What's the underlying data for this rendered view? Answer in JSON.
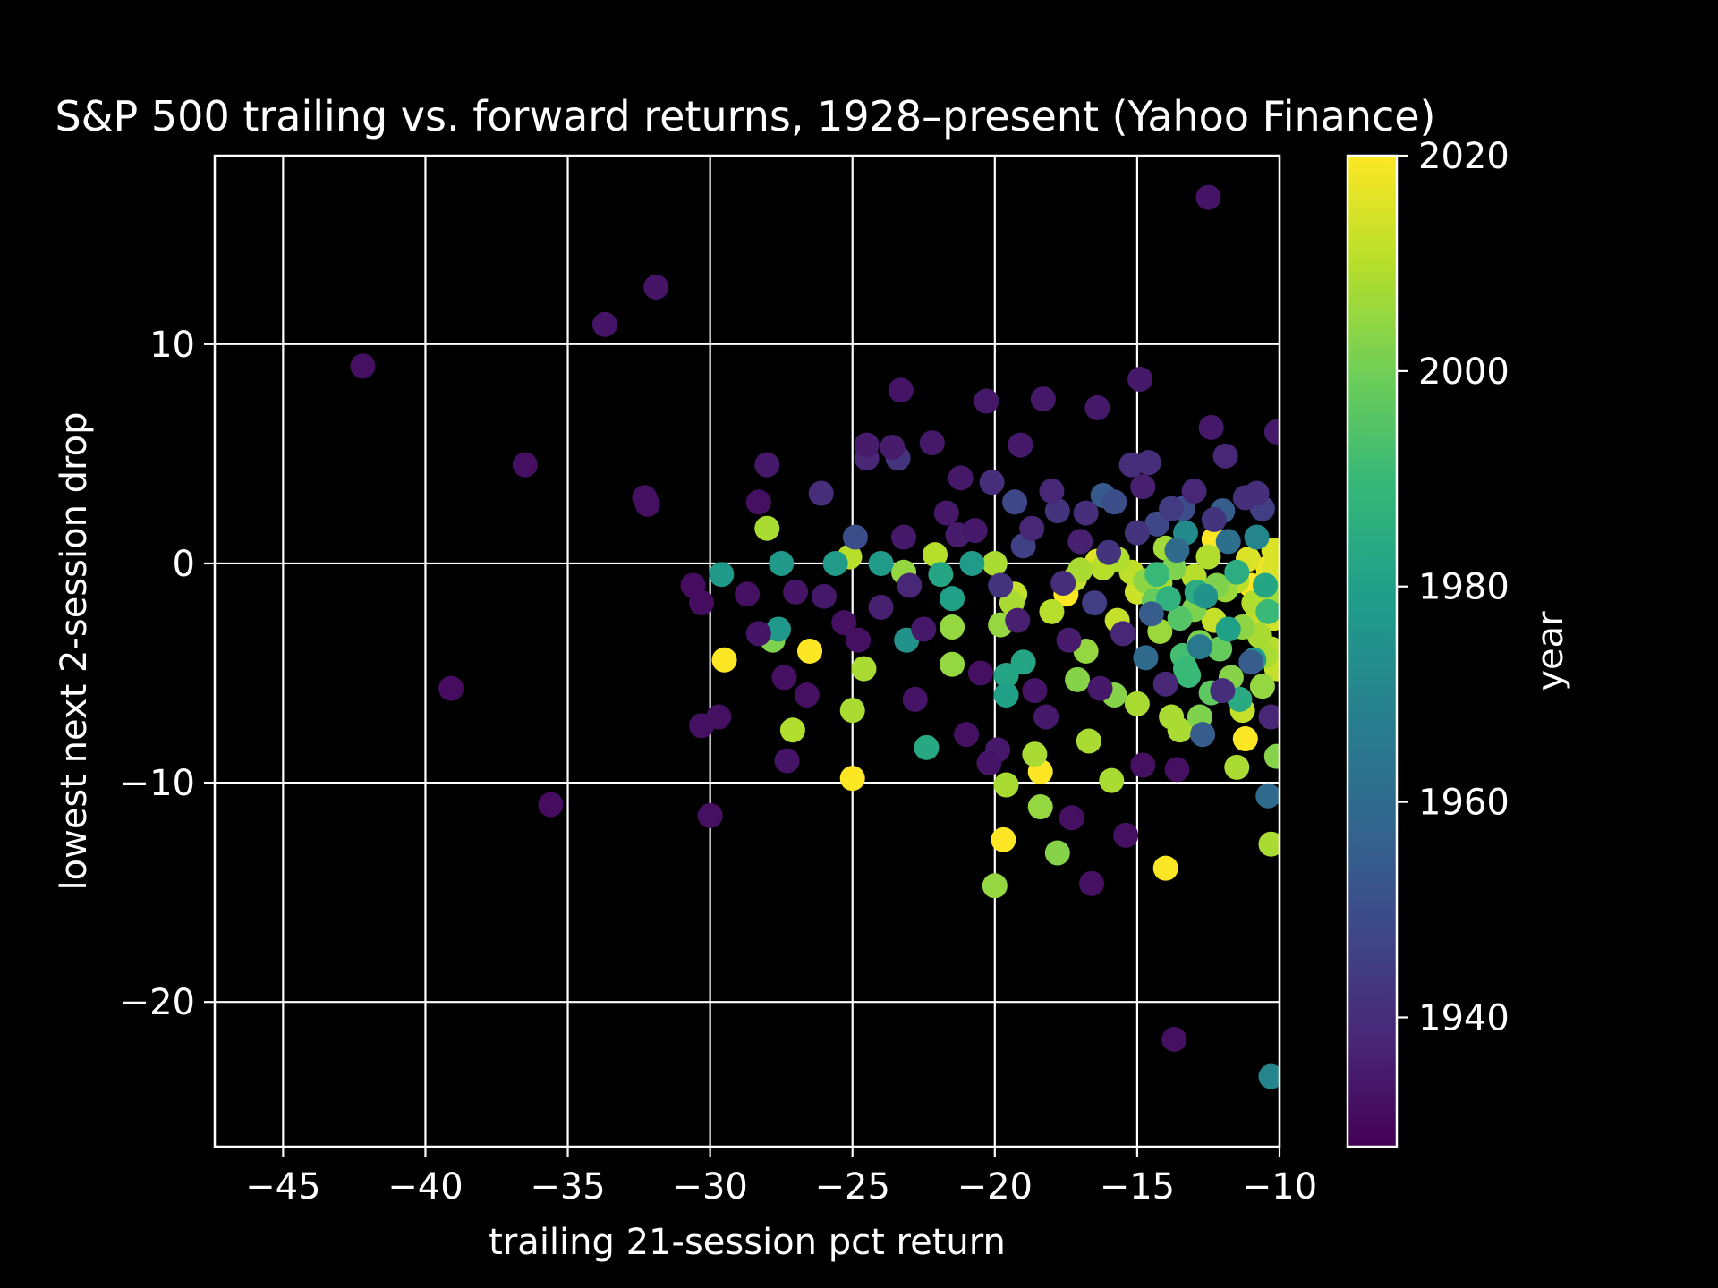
{
  "chart_data": {
    "type": "scatter",
    "title": "S&P 500 trailing vs. forward returns, 1928–present (Yahoo Finance)",
    "xlabel": "trailing 21-session pct return",
    "ylabel": "lowest next 2-session drop",
    "xlim": [
      -47.4,
      -10
    ],
    "ylim": [
      -26.6,
      18.6
    ],
    "xticks": [
      -45,
      -40,
      -35,
      -30,
      -25,
      -20,
      -15,
      -10
    ],
    "xtick_labels": [
      "−45",
      "−40",
      "−35",
      "−30",
      "−25",
      "−20",
      "−15",
      "−10"
    ],
    "yticks": [
      -20,
      -10,
      0,
      10
    ],
    "ytick_labels": [
      "−20",
      "−10",
      "0",
      "10"
    ],
    "grid": true,
    "colorbar": {
      "label": "year",
      "colormap": "viridis",
      "range": [
        1928,
        2020
      ],
      "ticks": [
        1940,
        1960,
        1980,
        2000,
        2020
      ],
      "tick_labels": [
        "1940",
        "1960",
        "1980",
        "2000",
        "2020"
      ]
    },
    "colors": {
      "background": "#000000",
      "foreground": "#ffffff",
      "viridis": [
        "#440154",
        "#482878",
        "#3e4989",
        "#31688e",
        "#26828e",
        "#1f9e89",
        "#35b779",
        "#6ece58",
        "#b5de2b",
        "#fde725"
      ]
    },
    "points": [
      {
        "x": -42.2,
        "y": 9.0,
        "year": 1932
      },
      {
        "x": -36.5,
        "y": 4.5,
        "year": 1932
      },
      {
        "x": -33.7,
        "y": 10.9,
        "year": 1933
      },
      {
        "x": -31.9,
        "y": 12.6,
        "year": 1933
      },
      {
        "x": -32.3,
        "y": 3.0,
        "year": 1932
      },
      {
        "x": -32.2,
        "y": 2.7,
        "year": 1932
      },
      {
        "x": -39.1,
        "y": -5.7,
        "year": 1931
      },
      {
        "x": -35.6,
        "y": -11.0,
        "year": 1931
      },
      {
        "x": -30.0,
        "y": -11.5,
        "year": 1932
      },
      {
        "x": -30.6,
        "y": -1.0,
        "year": 1931
      },
      {
        "x": -30.3,
        "y": -1.8,
        "year": 1931
      },
      {
        "x": -30.3,
        "y": -7.4,
        "year": 1932
      },
      {
        "x": -29.7,
        "y": -7.0,
        "year": 1932
      },
      {
        "x": -29.6,
        "y": -0.5,
        "year": 1977
      },
      {
        "x": -29.5,
        "y": -4.4,
        "year": 2020
      },
      {
        "x": -28.7,
        "y": -1.4,
        "year": 1932
      },
      {
        "x": -28.3,
        "y": -3.2,
        "year": 1933
      },
      {
        "x": -28.3,
        "y": 2.8,
        "year": 1932
      },
      {
        "x": -28.0,
        "y": 1.6,
        "year": 2008
      },
      {
        "x": -28.0,
        "y": 4.5,
        "year": 1934
      },
      {
        "x": -27.8,
        "y": -3.5,
        "year": 2002
      },
      {
        "x": -27.6,
        "y": -3.0,
        "year": 1977
      },
      {
        "x": -27.5,
        "y": 0.0,
        "year": 1977
      },
      {
        "x": -27.4,
        "y": -5.2,
        "year": 1932
      },
      {
        "x": -27.3,
        "y": -9.0,
        "year": 1933
      },
      {
        "x": -27.1,
        "y": -7.6,
        "year": 2009
      },
      {
        "x": -27.0,
        "y": -1.3,
        "year": 1933
      },
      {
        "x": -26.6,
        "y": -6.0,
        "year": 1932
      },
      {
        "x": -26.5,
        "y": -4.0,
        "year": 2020
      },
      {
        "x": -26.1,
        "y": 3.2,
        "year": 1940
      },
      {
        "x": -25.6,
        "y": 0.0,
        "year": 1978
      },
      {
        "x": -25.3,
        "y": -2.7,
        "year": 1932
      },
      {
        "x": -25.1,
        "y": 0.3,
        "year": 2010
      },
      {
        "x": -25.0,
        "y": -9.8,
        "year": 2020
      },
      {
        "x": -25.0,
        "y": -6.7,
        "year": 2008
      },
      {
        "x": -24.9,
        "y": 1.2,
        "year": 1950
      },
      {
        "x": -24.8,
        "y": -3.5,
        "year": 1932
      },
      {
        "x": -24.6,
        "y": -4.8,
        "year": 2008
      },
      {
        "x": -24.5,
        "y": 5.4,
        "year": 1935
      },
      {
        "x": -24.5,
        "y": 4.8,
        "year": 1938
      },
      {
        "x": -24.0,
        "y": 0.0,
        "year": 1978
      },
      {
        "x": -23.6,
        "y": 5.3,
        "year": 1935
      },
      {
        "x": -23.4,
        "y": 4.8,
        "year": 1942
      },
      {
        "x": -23.3,
        "y": 7.9,
        "year": 1933
      },
      {
        "x": -23.2,
        "y": -0.4,
        "year": 2005
      },
      {
        "x": -23.1,
        "y": -3.5,
        "year": 1975
      },
      {
        "x": -23.2,
        "y": 1.2,
        "year": 1934
      },
      {
        "x": -22.2,
        "y": 5.5,
        "year": 1934
      },
      {
        "x": -22.1,
        "y": 0.4,
        "year": 2010
      },
      {
        "x": -21.9,
        "y": -0.5,
        "year": 1982
      },
      {
        "x": -22.4,
        "y": -8.4,
        "year": 1983
      },
      {
        "x": -21.5,
        "y": -1.6,
        "year": 1980
      },
      {
        "x": -21.5,
        "y": -2.9,
        "year": 2005
      },
      {
        "x": -21.5,
        "y": -4.6,
        "year": 2005
      },
      {
        "x": -21.2,
        "y": 3.9,
        "year": 1934
      },
      {
        "x": -21.0,
        "y": -7.8,
        "year": 1932
      },
      {
        "x": -20.8,
        "y": 0.0,
        "year": 1978
      },
      {
        "x": -20.3,
        "y": 7.4,
        "year": 1934
      },
      {
        "x": -20.1,
        "y": 3.7,
        "year": 1940
      },
      {
        "x": -20.0,
        "y": 0.0,
        "year": 2008
      },
      {
        "x": -20.0,
        "y": -14.7,
        "year": 2005
      },
      {
        "x": -19.8,
        "y": -2.8,
        "year": 2005
      },
      {
        "x": -19.7,
        "y": -12.6,
        "year": 2020
      },
      {
        "x": -19.6,
        "y": -10.1,
        "year": 2008
      },
      {
        "x": -19.6,
        "y": -6.0,
        "year": 1980
      },
      {
        "x": -19.6,
        "y": -5.1,
        "year": 1982
      },
      {
        "x": -19.4,
        "y": -1.8,
        "year": 2008
      },
      {
        "x": -19.3,
        "y": 2.8,
        "year": 1948
      },
      {
        "x": -19.3,
        "y": -1.4,
        "year": 2012
      },
      {
        "x": -19.1,
        "y": 5.4,
        "year": 1934
      },
      {
        "x": -19.0,
        "y": -4.5,
        "year": 1982
      },
      {
        "x": -18.6,
        "y": -8.7,
        "year": 2008
      },
      {
        "x": -18.4,
        "y": -9.5,
        "year": 2020
      },
      {
        "x": -18.4,
        "y": -11.1,
        "year": 2005
      },
      {
        "x": -18.3,
        "y": 7.5,
        "year": 1934
      },
      {
        "x": -18.0,
        "y": -2.2,
        "year": 2010
      },
      {
        "x": -17.8,
        "y": -13.2,
        "year": 2003
      },
      {
        "x": -17.5,
        "y": -1.4,
        "year": 2020
      },
      {
        "x": -17.3,
        "y": -11.6,
        "year": 1932
      },
      {
        "x": -17.2,
        "y": -0.7,
        "year": 2012
      },
      {
        "x": -17.1,
        "y": -5.3,
        "year": 2003
      },
      {
        "x": -16.8,
        "y": -4.0,
        "year": 2005
      },
      {
        "x": -16.7,
        "y": -8.1,
        "year": 2008
      },
      {
        "x": -16.6,
        "y": -14.6,
        "year": 1932
      },
      {
        "x": -16.4,
        "y": 7.1,
        "year": 1934
      },
      {
        "x": -16.2,
        "y": 3.1,
        "year": 1954
      },
      {
        "x": -15.9,
        "y": -9.9,
        "year": 2008
      },
      {
        "x": -15.8,
        "y": -6.0,
        "year": 2003
      },
      {
        "x": -15.7,
        "y": -2.6,
        "year": 2012
      },
      {
        "x": -15.4,
        "y": -12.4,
        "year": 1932
      },
      {
        "x": -15.0,
        "y": -6.4,
        "year": 2008
      },
      {
        "x": -14.9,
        "y": 8.4,
        "year": 1934
      },
      {
        "x": -14.8,
        "y": -9.2,
        "year": 1932
      },
      {
        "x": -14.7,
        "y": -4.3,
        "year": 1960
      },
      {
        "x": -14.6,
        "y": 4.6,
        "year": 1940
      },
      {
        "x": -14.2,
        "y": -0.9,
        "year": 2008
      },
      {
        "x": -14.0,
        "y": -13.9,
        "year": 2020
      },
      {
        "x": -13.8,
        "y": -7.0,
        "year": 2008
      },
      {
        "x": -13.7,
        "y": -21.7,
        "year": 1932
      },
      {
        "x": -13.6,
        "y": -9.4,
        "year": 1932
      },
      {
        "x": -13.5,
        "y": -7.6,
        "year": 2008
      },
      {
        "x": -13.4,
        "y": 2.5,
        "year": 1950
      },
      {
        "x": -13.2,
        "y": -5.1,
        "year": 1990
      },
      {
        "x": -13.0,
        "y": -2.1,
        "year": 2002
      },
      {
        "x": -12.8,
        "y": -7.0,
        "year": 2002
      },
      {
        "x": -12.7,
        "y": -7.8,
        "year": 1955
      },
      {
        "x": -12.5,
        "y": 16.7,
        "year": 1933
      },
      {
        "x": -12.4,
        "y": 6.2,
        "year": 1934
      },
      {
        "x": -12.3,
        "y": 1.1,
        "year": 2020
      },
      {
        "x": -12.2,
        "y": -1.0,
        "year": 2002
      },
      {
        "x": -12.0,
        "y": 2.4,
        "year": 1955
      },
      {
        "x": -11.9,
        "y": 4.9,
        "year": 1938
      },
      {
        "x": -11.5,
        "y": -9.3,
        "year": 2008
      },
      {
        "x": -11.3,
        "y": -6.7,
        "year": 2012
      },
      {
        "x": -11.2,
        "y": -8.0,
        "year": 2020
      },
      {
        "x": -11.0,
        "y": -2.8,
        "year": 2012
      },
      {
        "x": -10.8,
        "y": 3.2,
        "year": 1940
      },
      {
        "x": -10.5,
        "y": -4.2,
        "year": 2008
      },
      {
        "x": -10.4,
        "y": -10.6,
        "year": 1960
      },
      {
        "x": -10.3,
        "y": -12.8,
        "year": 2008
      },
      {
        "x": -10.3,
        "y": -23.4,
        "year": 1970
      },
      {
        "x": -10.2,
        "y": -0.2,
        "year": 2015
      },
      {
        "x": -10.1,
        "y": 6.0,
        "year": 1934
      },
      {
        "x": -26.0,
        "y": -1.5,
        "year": 1934
      },
      {
        "x": -24.0,
        "y": -2.0,
        "year": 1936
      },
      {
        "x": -23.0,
        "y": -1.0,
        "year": 1938
      },
      {
        "x": -22.5,
        "y": -3.0,
        "year": 1934
      },
      {
        "x": -22.8,
        "y": -6.2,
        "year": 1933
      },
      {
        "x": -21.7,
        "y": 2.3,
        "year": 1934
      },
      {
        "x": -21.3,
        "y": 1.3,
        "year": 1935
      },
      {
        "x": -20.7,
        "y": 1.5,
        "year": 1934
      },
      {
        "x": -20.5,
        "y": -5.0,
        "year": 1932
      },
      {
        "x": -20.2,
        "y": -9.1,
        "year": 1933
      },
      {
        "x": -19.9,
        "y": -8.5,
        "year": 1934
      },
      {
        "x": -19.8,
        "y": -1.0,
        "year": 1942
      },
      {
        "x": -19.2,
        "y": -2.6,
        "year": 1936
      },
      {
        "x": -19.0,
        "y": 0.8,
        "year": 1946
      },
      {
        "x": -18.7,
        "y": 1.6,
        "year": 1938
      },
      {
        "x": -18.6,
        "y": -5.8,
        "year": 1933
      },
      {
        "x": -18.2,
        "y": -7.0,
        "year": 1934
      },
      {
        "x": -18.0,
        "y": 3.3,
        "year": 1938
      },
      {
        "x": -17.8,
        "y": 2.4,
        "year": 1942
      },
      {
        "x": -17.6,
        "y": -0.9,
        "year": 1940
      },
      {
        "x": -17.4,
        "y": -3.5,
        "year": 1935
      },
      {
        "x": -17.0,
        "y": 1.0,
        "year": 1936
      },
      {
        "x": -16.8,
        "y": 2.3,
        "year": 1940
      },
      {
        "x": -16.5,
        "y": -1.8,
        "year": 1945
      },
      {
        "x": -16.3,
        "y": -5.7,
        "year": 1934
      },
      {
        "x": -16.0,
        "y": 0.5,
        "year": 1942
      },
      {
        "x": -15.8,
        "y": 2.8,
        "year": 1950
      },
      {
        "x": -15.5,
        "y": -3.2,
        "year": 1938
      },
      {
        "x": -15.2,
        "y": 4.5,
        "year": 1940
      },
      {
        "x": -15.0,
        "y": 1.4,
        "year": 1942
      },
      {
        "x": -14.8,
        "y": 3.5,
        "year": 1936
      },
      {
        "x": -14.5,
        "y": -2.3,
        "year": 1955
      },
      {
        "x": -14.3,
        "y": 1.8,
        "year": 1948
      },
      {
        "x": -14.0,
        "y": -5.5,
        "year": 1938
      },
      {
        "x": -13.8,
        "y": 2.5,
        "year": 1944
      },
      {
        "x": -13.6,
        "y": 0.6,
        "year": 1960
      },
      {
        "x": -13.3,
        "y": 1.4,
        "year": 1972
      },
      {
        "x": -13.0,
        "y": 3.3,
        "year": 1938
      },
      {
        "x": -12.8,
        "y": -3.8,
        "year": 1965
      },
      {
        "x": -12.6,
        "y": -1.5,
        "year": 1975
      },
      {
        "x": -12.3,
        "y": 2.0,
        "year": 1942
      },
      {
        "x": -12.0,
        "y": -5.8,
        "year": 1940
      },
      {
        "x": -11.8,
        "y": 1.0,
        "year": 1962
      },
      {
        "x": -11.5,
        "y": -0.4,
        "year": 1985
      },
      {
        "x": -11.2,
        "y": 3.0,
        "year": 1940
      },
      {
        "x": -11.0,
        "y": -4.5,
        "year": 1955
      },
      {
        "x": -10.8,
        "y": 1.2,
        "year": 1970
      },
      {
        "x": -10.6,
        "y": 2.5,
        "year": 1945
      },
      {
        "x": -10.4,
        "y": -2.2,
        "year": 1990
      },
      {
        "x": -10.3,
        "y": -7.0,
        "year": 1938
      },
      {
        "x": -10.2,
        "y": 0.6,
        "year": 2015
      },
      {
        "x": -17.0,
        "y": -0.3,
        "year": 2008
      },
      {
        "x": -16.2,
        "y": -0.2,
        "year": 2010
      },
      {
        "x": -15.7,
        "y": 0.2,
        "year": 2009
      },
      {
        "x": -15.2,
        "y": -0.4,
        "year": 2011
      },
      {
        "x": -15.0,
        "y": -1.3,
        "year": 2013
      },
      {
        "x": -14.7,
        "y": -0.8,
        "year": 2004
      },
      {
        "x": -14.4,
        "y": -1.7,
        "year": 1998
      },
      {
        "x": -14.2,
        "y": -3.1,
        "year": 2006
      },
      {
        "x": -14.0,
        "y": 0.7,
        "year": 2007
      },
      {
        "x": -13.7,
        "y": -0.2,
        "year": 2002
      },
      {
        "x": -13.5,
        "y": -2.5,
        "year": 1995
      },
      {
        "x": -13.3,
        "y": -4.8,
        "year": 1990
      },
      {
        "x": -13.0,
        "y": -0.6,
        "year": 2010
      },
      {
        "x": -12.8,
        "y": -3.6,
        "year": 2001
      },
      {
        "x": -12.5,
        "y": 0.3,
        "year": 2009
      },
      {
        "x": -12.3,
        "y": -2.6,
        "year": 2012
      },
      {
        "x": -12.1,
        "y": -3.9,
        "year": 1998
      },
      {
        "x": -11.9,
        "y": -1.2,
        "year": 2006
      },
      {
        "x": -11.7,
        "y": -5.2,
        "year": 2003
      },
      {
        "x": -11.5,
        "y": -0.8,
        "year": 2011
      },
      {
        "x": -11.3,
        "y": -2.9,
        "year": 2004
      },
      {
        "x": -11.1,
        "y": 0.2,
        "year": 2015
      },
      {
        "x": -10.9,
        "y": -1.8,
        "year": 2009
      },
      {
        "x": -10.7,
        "y": -3.3,
        "year": 2008
      },
      {
        "x": -10.6,
        "y": -5.6,
        "year": 2005
      },
      {
        "x": -10.4,
        "y": -0.6,
        "year": 2017
      },
      {
        "x": -10.3,
        "y": -3.9,
        "year": 2010
      },
      {
        "x": -10.2,
        "y": -1.4,
        "year": 2007
      },
      {
        "x": -10.1,
        "y": -8.8,
        "year": 2003
      },
      {
        "x": -10.1,
        "y": -4.8,
        "year": 2012
      },
      {
        "x": -14.3,
        "y": -0.5,
        "year": 1990
      },
      {
        "x": -13.9,
        "y": -1.6,
        "year": 1987
      },
      {
        "x": -13.4,
        "y": -4.2,
        "year": 1992
      },
      {
        "x": -12.9,
        "y": -1.3,
        "year": 1985
      },
      {
        "x": -12.4,
        "y": -5.9,
        "year": 1997
      },
      {
        "x": -11.8,
        "y": -3.0,
        "year": 1980
      },
      {
        "x": -11.4,
        "y": -6.2,
        "year": 1984
      },
      {
        "x": -10.9,
        "y": -4.4,
        "year": 1978
      },
      {
        "x": -10.5,
        "y": -1.0,
        "year": 1982
      },
      {
        "x": -16.4,
        "y": 0.1,
        "year": 2016
      },
      {
        "x": -11.0,
        "y": -1.0,
        "year": 2020
      },
      {
        "x": -10.4,
        "y": -0.2,
        "year": 2019
      },
      {
        "x": -10.2,
        "y": -2.5,
        "year": 2014
      }
    ]
  }
}
